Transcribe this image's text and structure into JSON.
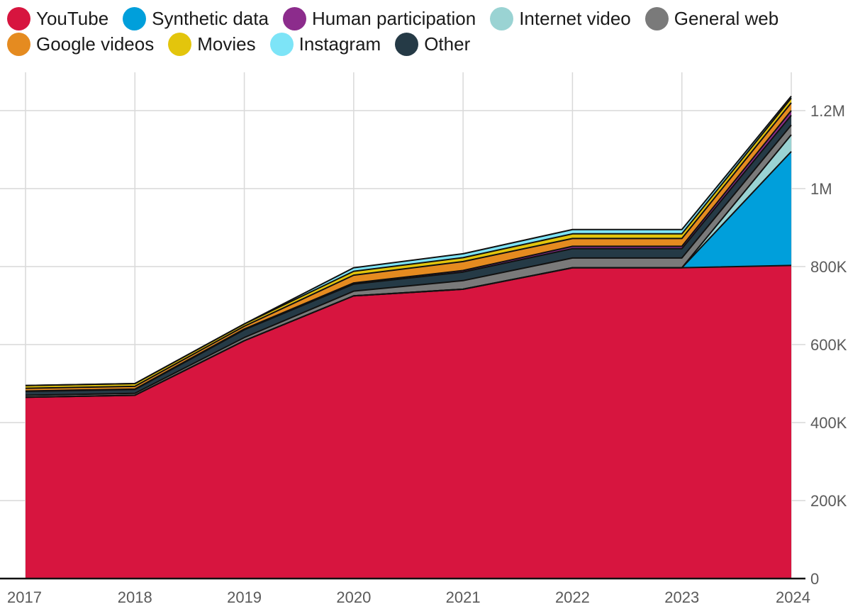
{
  "chart_data": {
    "type": "area",
    "stacked": true,
    "x": [
      "2017",
      "2018",
      "2019",
      "2020",
      "2021",
      "2022",
      "2023",
      "2024"
    ],
    "series": [
      {
        "name": "YouTube",
        "color": "#d7153f",
        "values": [
          465000,
          470000,
          610000,
          725000,
          742000,
          797000,
          797000,
          803000
        ]
      },
      {
        "name": "Synthetic data",
        "color": "#009fdb",
        "values": [
          0,
          0,
          0,
          0,
          0,
          0,
          0,
          292000
        ]
      },
      {
        "name": "Internet video",
        "color": "#9ad3d3",
        "values": [
          0,
          0,
          0,
          0,
          0,
          0,
          0,
          43000
        ]
      },
      {
        "name": "General web",
        "color": "#7a7a7a",
        "values": [
          5000,
          5000,
          8000,
          12000,
          22000,
          25000,
          25000,
          25000
        ]
      },
      {
        "name": "Other",
        "color": "#253a46",
        "values": [
          10000,
          10000,
          20000,
          18000,
          22000,
          24000,
          24000,
          25000
        ]
      },
      {
        "name": "Human participation",
        "color": "#8c2c8c",
        "values": [
          1000,
          1000,
          2000,
          3000,
          4000,
          6000,
          6000,
          12000
        ]
      },
      {
        "name": "Google videos",
        "color": "#e58b20",
        "values": [
          7000,
          7000,
          7000,
          20000,
          23000,
          20000,
          20000,
          20000
        ]
      },
      {
        "name": "Movies",
        "color": "#e3c50c",
        "values": [
          7000,
          7000,
          6000,
          10000,
          10000,
          12000,
          12000,
          12000
        ]
      },
      {
        "name": "Instagram",
        "color": "#7de4f7",
        "values": [
          0,
          0,
          0,
          9000,
          10000,
          11000,
          11000,
          5000
        ]
      }
    ],
    "ylim": [
      0,
      1290000
    ],
    "yticks": [
      0,
      200000,
      400000,
      600000,
      800000,
      1000000,
      1200000
    ],
    "ytick_labels": [
      "0",
      "200K",
      "400K",
      "600K",
      "800K",
      "1M",
      "1.2M"
    ],
    "xtick_labels": [
      "2017",
      "2018",
      "2019",
      "2020",
      "2021",
      "2022",
      "2023",
      "2024"
    ],
    "legend_position": "top",
    "legend_order": [
      [
        "YouTube",
        "Synthetic data",
        "Human participation",
        "Internet video",
        "General web"
      ],
      [
        "Google videos",
        "Movies",
        "Instagram",
        "Other"
      ]
    ],
    "grid": true,
    "y_axis_side": "right",
    "xlabel": "",
    "ylabel": ""
  }
}
